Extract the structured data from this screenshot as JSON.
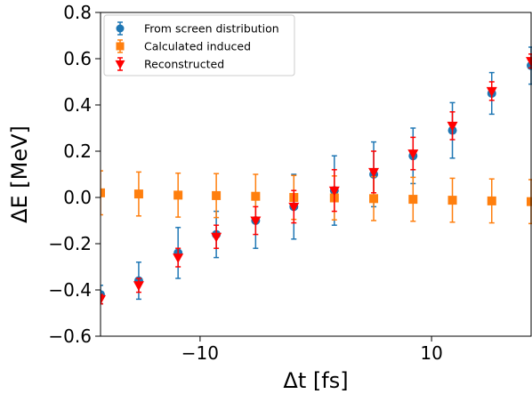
{
  "chart_data": {
    "type": "scatter",
    "xlabel": "Δt [fs]",
    "ylabel": "ΔE [MeV]",
    "xlim": [
      -18.6,
      18.6
    ],
    "ylim": [
      -0.6,
      0.8
    ],
    "xticks": [
      -10,
      10
    ],
    "xtick_labels": [
      "−10",
      "10"
    ],
    "yticks": [
      -0.6,
      -0.4,
      -0.2,
      0.0,
      0.2,
      0.4,
      0.6,
      0.8
    ],
    "ytick_labels": [
      "−0.6",
      "−0.4",
      "−0.2",
      "0.0",
      "0.2",
      "0.4",
      "0.6",
      "0.8"
    ],
    "grid": false,
    "legend_position": "top-left",
    "series": [
      {
        "name": "From screen distribution",
        "marker": "circle",
        "color": "#1f77b4",
        "x": [
          -18.6,
          -15.3,
          -11.9,
          -8.6,
          -5.2,
          -1.9,
          1.6,
          5.0,
          8.4,
          11.8,
          15.2,
          18.6
        ],
        "y": [
          -0.42,
          -0.36,
          -0.24,
          -0.16,
          -0.1,
          -0.04,
          0.03,
          0.1,
          0.18,
          0.29,
          0.45,
          0.57
        ],
        "yerr": [
          0.04,
          0.08,
          0.11,
          0.1,
          0.12,
          0.14,
          0.15,
          0.14,
          0.12,
          0.12,
          0.09,
          0.08
        ]
      },
      {
        "name": "Calculated induced",
        "marker": "square",
        "color": "#ff7f0e",
        "x": [
          -18.6,
          -15.3,
          -11.9,
          -8.6,
          -5.2,
          -1.9,
          1.6,
          5.0,
          8.4,
          11.8,
          15.2,
          18.6
        ],
        "y": [
          0.02,
          0.015,
          0.01,
          0.008,
          0.005,
          0.0,
          -0.002,
          -0.005,
          -0.008,
          -0.012,
          -0.015,
          -0.018
        ],
        "yerr": [
          0.095,
          0.095,
          0.095,
          0.095,
          0.095,
          0.095,
          0.095,
          0.095,
          0.095,
          0.095,
          0.095,
          0.095
        ]
      },
      {
        "name": "Reconstructed",
        "marker": "triangle-down",
        "color": "#ff0000",
        "x": [
          -18.6,
          -15.3,
          -11.9,
          -8.6,
          -5.2,
          -1.9,
          1.6,
          5.0,
          8.4,
          11.8,
          15.2,
          18.6
        ],
        "y": [
          -0.44,
          -0.38,
          -0.26,
          -0.17,
          -0.1,
          -0.04,
          0.03,
          0.11,
          0.19,
          0.31,
          0.46,
          0.59
        ],
        "yerr": [
          0.02,
          0.03,
          0.04,
          0.05,
          0.06,
          0.07,
          0.09,
          0.09,
          0.07,
          0.06,
          0.04,
          0.03
        ]
      }
    ]
  }
}
